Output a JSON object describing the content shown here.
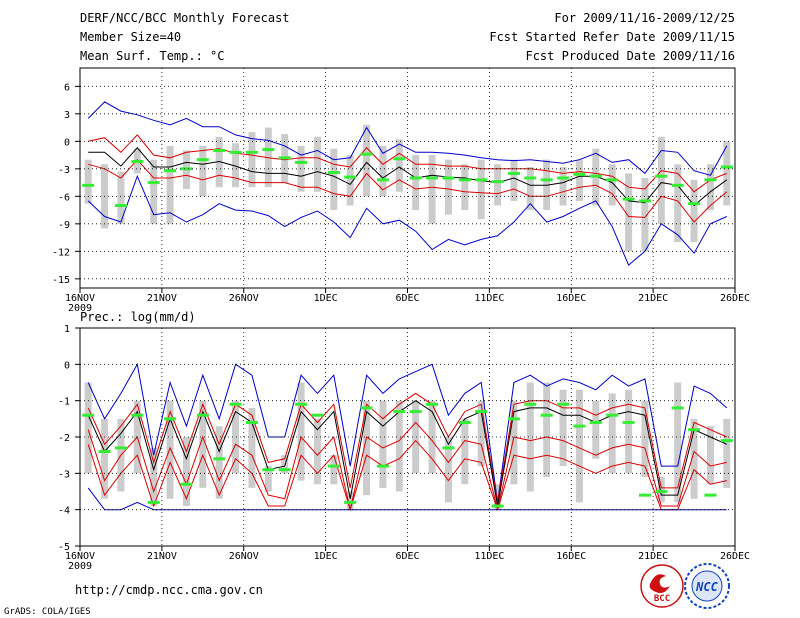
{
  "header": {
    "title": "DERF/NCC/BCC Monthly Forecast",
    "member_size": "Member Size=40",
    "variable": "Mean Surf. Temp.: °C",
    "period": "For 2009/11/16-2009/12/25",
    "fcst_started": "Fcst Started Refer Date 2009/11/15",
    "fcst_produced": "Fcst Produced Date 2009/11/16"
  },
  "footer": {
    "url": "http://cmdp.ncc.cma.gov.cn",
    "grads": "GrADS: COLA/IGES",
    "logo_bcc_text": "BCC",
    "logo_ncc_text": "NCC"
  },
  "colors": {
    "spread_bar": "#cccccc",
    "observed": "#33ee33",
    "mean_line": "#000000",
    "quartile_lines": "#dd0000",
    "extreme_lines": "#0000cc",
    "logo_bcc": "#cc1111",
    "logo_ncc": "#1144bb"
  },
  "chart_data": [
    {
      "id": "temperature",
      "type": "line",
      "title": "",
      "ylim": [
        -16,
        8
      ],
      "yticks": [
        6,
        3,
        0,
        -3,
        -6,
        -9,
        -12,
        -15
      ],
      "xlim": [
        0,
        40
      ],
      "xticks": [
        {
          "day": 0,
          "label": "16NOV",
          "sublabel": "2009"
        },
        {
          "day": 5,
          "label": "21NOV"
        },
        {
          "day": 10,
          "label": "26NOV"
        },
        {
          "day": 15,
          "label": "1DEC"
        },
        {
          "day": 20,
          "label": "6DEC"
        },
        {
          "day": 25,
          "label": "11DEC"
        },
        {
          "day": 30,
          "label": "16DEC"
        },
        {
          "day": 35,
          "label": "21DEC"
        },
        {
          "day": 40,
          "label": "26DEC"
        }
      ],
      "x": [
        0,
        1,
        2,
        3,
        4,
        5,
        6,
        7,
        8,
        9,
        10,
        11,
        12,
        13,
        14,
        15,
        16,
        17,
        18,
        19,
        20,
        21,
        22,
        23,
        24,
        25,
        26,
        27,
        28,
        29,
        30,
        31,
        32,
        33,
        34,
        35,
        36,
        37,
        38,
        39
      ],
      "series": [
        {
          "name": "max",
          "color_key": "extreme_lines",
          "values": [
            2.5,
            4.3,
            3.3,
            2.9,
            2.3,
            1.8,
            2.5,
            1.6,
            1.6,
            0.7,
            0.3,
            0.1,
            -0.5,
            -1.5,
            -1.0,
            -2.0,
            -1.8,
            1.5,
            -1.3,
            -0.3,
            -1.2,
            -1.2,
            -1.3,
            -1.5,
            -1.8,
            -2.0,
            -2.1,
            -2.0,
            -2.2,
            -2.4,
            -2.0,
            -1.3,
            -2.3,
            -2.0,
            -3.5,
            -1.0,
            -1.2,
            -3.2,
            -3.7,
            -0.5
          ]
        },
        {
          "name": "q75",
          "color_key": "quartile_lines",
          "values": [
            0.0,
            0.4,
            -1.2,
            0.7,
            -1.5,
            -1.8,
            -1.2,
            -1.0,
            -0.8,
            -1.3,
            -1.5,
            -1.8,
            -2.0,
            -1.8,
            -1.8,
            -2.5,
            -2.8,
            -0.7,
            -2.5,
            -1.3,
            -2.5,
            -2.5,
            -2.7,
            -2.7,
            -3.0,
            -3.0,
            -3.0,
            -3.0,
            -3.2,
            -3.5,
            -3.3,
            -3.5,
            -3.8,
            -5.0,
            -5.2,
            -3.2,
            -3.5,
            -5.5,
            -4.2,
            -3.5
          ]
        },
        {
          "name": "mean",
          "color_key": "mean_line",
          "values": [
            -1.2,
            -1.2,
            -2.7,
            -0.7,
            -2.8,
            -2.8,
            -2.3,
            -2.5,
            -2.2,
            -2.7,
            -3.3,
            -3.5,
            -3.5,
            -3.8,
            -3.3,
            -3.8,
            -4.7,
            -2.3,
            -4.0,
            -2.8,
            -4.0,
            -3.7,
            -3.9,
            -4.0,
            -4.3,
            -4.5,
            -4.0,
            -4.8,
            -4.8,
            -4.5,
            -3.8,
            -3.8,
            -4.5,
            -6.5,
            -6.7,
            -4.5,
            -4.8,
            -7.0,
            -5.5,
            -4.2
          ]
        },
        {
          "name": "q25",
          "color_key": "quartile_lines",
          "values": [
            -2.5,
            -3.0,
            -4.0,
            -2.0,
            -4.0,
            -4.0,
            -3.7,
            -4.2,
            -3.7,
            -4.0,
            -4.5,
            -4.5,
            -4.5,
            -5.0,
            -5.0,
            -5.7,
            -6.0,
            -3.5,
            -5.3,
            -4.2,
            -5.2,
            -5.0,
            -5.2,
            -5.5,
            -5.6,
            -5.7,
            -5.2,
            -6.0,
            -6.0,
            -5.5,
            -5.0,
            -4.8,
            -5.7,
            -8.2,
            -8.3,
            -6.0,
            -6.5,
            -8.8,
            -7.0,
            -5.5
          ]
        },
        {
          "name": "min",
          "color_key": "extreme_lines",
          "values": [
            -6.5,
            -8.2,
            -8.8,
            -3.8,
            -8.0,
            -7.8,
            -8.8,
            -8.0,
            -6.8,
            -7.5,
            -7.6,
            -8.1,
            -9.3,
            -8.3,
            -7.6,
            -8.8,
            -10.5,
            -7.3,
            -9.0,
            -8.6,
            -9.8,
            -11.8,
            -10.7,
            -11.3,
            -10.7,
            -10.3,
            -8.8,
            -6.8,
            -8.8,
            -8.2,
            -7.3,
            -6.5,
            -9.3,
            -13.5,
            -12.0,
            -9.0,
            -10.2,
            -12.2,
            -9.0,
            -8.2
          ]
        }
      ],
      "observed": [
        -4.8,
        null,
        -7.0,
        -2.2,
        -4.5,
        -3.2,
        -3.0,
        -2.0,
        -1.0,
        -1.2,
        -1.2,
        -0.9,
        -1.8,
        -2.3,
        null,
        -3.4,
        -3.9,
        -1.4,
        -4.2,
        -1.9,
        -4.0,
        -4.0,
        -4.0,
        -4.2,
        -4.2,
        -4.4,
        -3.5,
        -4.0,
        -4.2,
        -4.0,
        -3.6,
        -3.8,
        -4.2,
        -6.3,
        -6.5,
        -3.8,
        -4.8,
        -6.8,
        -4.2,
        -2.8
      ],
      "spread": [
        [
          -2.0,
          -6.8
        ],
        [
          -2.5,
          -9.5
        ],
        [
          -3.3,
          -9.0
        ],
        [
          -0.8,
          -3.5
        ],
        [
          -2.0,
          -9.0
        ],
        [
          -0.5,
          -9.0
        ],
        [
          -1.0,
          -5.2
        ],
        [
          -0.5,
          -6.0
        ],
        [
          0.5,
          -5.0
        ],
        [
          -0.2,
          -5.0
        ],
        [
          1.0,
          -5.0
        ],
        [
          1.5,
          -5.0
        ],
        [
          0.8,
          -4.5
        ],
        [
          -0.5,
          -5.5
        ],
        [
          0.5,
          -5.5
        ],
        [
          -0.8,
          -7.5
        ],
        [
          -1.5,
          -7.0
        ],
        [
          1.8,
          -6.0
        ],
        [
          -0.5,
          -6.0
        ],
        [
          0.2,
          -5.5
        ],
        [
          -1.5,
          -7.5
        ],
        [
          -1.5,
          -9.0
        ],
        [
          -2.0,
          -8.0
        ],
        [
          -2.5,
          -7.5
        ],
        [
          -2.0,
          -8.5
        ],
        [
          -2.5,
          -7.0
        ],
        [
          -2.0,
          -6.5
        ],
        [
          -2.8,
          -7.5
        ],
        [
          -2.0,
          -7.5
        ],
        [
          -2.8,
          -7.0
        ],
        [
          -2.0,
          -6.5
        ],
        [
          -0.8,
          -7.0
        ],
        [
          -2.5,
          -7.0
        ],
        [
          -3.5,
          -12.0
        ],
        [
          -4.0,
          -12.0
        ],
        [
          0.5,
          -9.0
        ],
        [
          -2.5,
          -11.0
        ],
        [
          -4.2,
          -11.0
        ],
        [
          -2.5,
          -7.5
        ],
        [
          0.0,
          -7.0
        ]
      ]
    },
    {
      "id": "precipitation",
      "type": "line",
      "title": "Prec.: log(mm/d)",
      "ylim": [
        -5,
        1
      ],
      "yticks": [
        1,
        0,
        -1,
        -2,
        -3,
        -4,
        -5
      ],
      "xlim": [
        0,
        40
      ],
      "xticks": [
        {
          "day": 0,
          "label": "16NOV",
          "sublabel": "2009"
        },
        {
          "day": 5,
          "label": "21NOV"
        },
        {
          "day": 10,
          "label": "26NOV"
        },
        {
          "day": 15,
          "label": "1DEC"
        },
        {
          "day": 20,
          "label": "6DEC"
        },
        {
          "day": 25,
          "label": "11DEC"
        },
        {
          "day": 30,
          "label": "16DEC"
        },
        {
          "day": 35,
          "label": "21DEC"
        },
        {
          "day": 40,
          "label": "26DEC"
        }
      ],
      "x": [
        0,
        1,
        2,
        3,
        4,
        5,
        6,
        7,
        8,
        9,
        10,
        11,
        12,
        13,
        14,
        15,
        16,
        17,
        18,
        19,
        20,
        21,
        22,
        23,
        24,
        25,
        26,
        27,
        28,
        29,
        30,
        31,
        32,
        33,
        34,
        35,
        36,
        37,
        38,
        39
      ],
      "series": [
        {
          "name": "max",
          "color_key": "extreme_lines",
          "values": [
            -0.5,
            -1.5,
            -0.8,
            0.0,
            -2.5,
            -0.5,
            -1.7,
            -0.3,
            -1.5,
            0.0,
            -0.3,
            -2.0,
            -2.0,
            -0.3,
            -0.8,
            -0.3,
            -2.8,
            -0.3,
            -0.8,
            -0.4,
            -0.2,
            0.0,
            -1.4,
            -0.8,
            -0.5,
            -3.8,
            -0.5,
            -0.3,
            -0.6,
            -0.4,
            -0.5,
            -0.7,
            -0.3,
            -0.6,
            -0.4,
            -2.8,
            -2.8,
            -0.6,
            -0.8,
            -1.2
          ]
        },
        {
          "name": "q75",
          "color_key": "quartile_lines",
          "values": [
            -1.2,
            -2.2,
            -1.7,
            -1.1,
            -2.7,
            -1.3,
            -2.4,
            -1.1,
            -2.2,
            -1.1,
            -1.4,
            -2.7,
            -2.6,
            -1.1,
            -1.6,
            -1.1,
            -3.4,
            -1.1,
            -1.5,
            -1.1,
            -0.8,
            -1.1,
            -2.0,
            -1.3,
            -1.1,
            -3.8,
            -1.1,
            -1.0,
            -1.0,
            -1.2,
            -1.2,
            -1.4,
            -1.2,
            -1.1,
            -1.2,
            -3.4,
            -3.4,
            -1.6,
            -1.8,
            -2.0
          ]
        },
        {
          "name": "mean",
          "color_key": "mean_line",
          "values": [
            -1.4,
            -2.4,
            -1.9,
            -1.3,
            -2.9,
            -1.5,
            -2.6,
            -1.3,
            -2.4,
            -1.3,
            -1.6,
            -2.9,
            -2.8,
            -1.3,
            -1.8,
            -1.3,
            -3.7,
            -1.3,
            -1.7,
            -1.3,
            -1.0,
            -1.3,
            -2.2,
            -1.5,
            -1.3,
            -3.9,
            -1.3,
            -1.2,
            -1.2,
            -1.4,
            -1.4,
            -1.6,
            -1.4,
            -1.3,
            -1.4,
            -3.6,
            -3.6,
            -1.8,
            -2.0,
            -2.2
          ]
        },
        {
          "name": "q25",
          "color_key": "quartile_lines",
          "values": [
            -1.8,
            -3.2,
            -2.5,
            -2.0,
            -3.5,
            -2.3,
            -3.3,
            -2.0,
            -3.2,
            -2.2,
            -2.5,
            -3.6,
            -3.7,
            -2.0,
            -2.5,
            -2.0,
            -4.0,
            -2.0,
            -2.3,
            -2.1,
            -1.6,
            -2.1,
            -2.7,
            -2.1,
            -2.2,
            -4.0,
            -2.0,
            -2.1,
            -2.0,
            -2.1,
            -2.3,
            -2.5,
            -2.3,
            -2.2,
            -2.3,
            -3.9,
            -3.9,
            -2.4,
            -2.8,
            -2.7
          ]
        },
        {
          "name": "q10",
          "color_key": "quartile_lines",
          "values": [
            -2.2,
            -3.6,
            -3.0,
            -2.5,
            -3.9,
            -2.7,
            -3.7,
            -2.5,
            -3.6,
            -2.6,
            -3.0,
            -3.9,
            -3.9,
            -2.5,
            -3.0,
            -2.5,
            -4.0,
            -2.5,
            -2.8,
            -2.6,
            -2.1,
            -2.6,
            -3.2,
            -2.6,
            -2.7,
            -4.0,
            -2.5,
            -2.6,
            -2.5,
            -2.6,
            -2.8,
            -3.0,
            -2.8,
            -2.7,
            -2.8,
            -4.0,
            -4.0,
            -2.9,
            -3.3,
            -3.2
          ]
        },
        {
          "name": "min",
          "color_key": "extreme_lines",
          "values": [
            -3.4,
            -4.0,
            -4.0,
            -3.8,
            -4.0,
            -4.0,
            -4.0,
            -4.0,
            -4.0,
            -4.0,
            -4.0,
            -4.0,
            -4.0,
            -4.0,
            -4.0,
            -4.0,
            -4.0,
            -4.0,
            -4.0,
            -4.0,
            -4.0,
            -4.0,
            -4.0,
            -4.0,
            -4.0,
            -4.0,
            -4.0,
            -4.0,
            -4.0,
            -4.0,
            -4.0,
            -4.0,
            -4.0,
            -4.0,
            -4.0,
            -4.0,
            -4.0,
            -4.0,
            -4.0,
            -4.0
          ]
        }
      ],
      "observed": [
        -1.4,
        -2.4,
        -2.3,
        -1.4,
        -3.8,
        -1.5,
        -3.3,
        -1.4,
        -2.6,
        -1.1,
        -1.6,
        -2.9,
        -2.9,
        -1.1,
        -1.4,
        -2.8,
        -3.8,
        -1.2,
        -2.8,
        -1.3,
        -1.3,
        -1.1,
        -2.3,
        -1.6,
        -1.3,
        -3.9,
        -1.5,
        -1.1,
        -1.4,
        -1.1,
        -1.7,
        -1.6,
        -1.4,
        -1.6,
        -3.6,
        -3.5,
        -1.2,
        -1.8,
        -3.6,
        -2.1
      ],
      "spread": [
        [
          -0.5,
          -3.0
        ],
        [
          -1.5,
          -3.7
        ],
        [
          -1.5,
          -3.5
        ],
        [
          -1.0,
          -3.0
        ],
        [
          -2.3,
          -3.9
        ],
        [
          -1.0,
          -3.7
        ],
        [
          -2.0,
          -3.9
        ],
        [
          -1.0,
          -3.4
        ],
        [
          -1.7,
          -3.7
        ],
        [
          -1.0,
          -3.0
        ],
        [
          -1.2,
          -3.4
        ],
        [
          -2.8,
          -3.5
        ],
        [
          -2.5,
          -3.0
        ],
        [
          -0.5,
          -3.2
        ],
        [
          -1.5,
          -3.3
        ],
        [
          -2.5,
          -3.3
        ],
        [
          -3.5,
          -4.0
        ],
        [
          -1.0,
          -3.6
        ],
        [
          -1.0,
          -3.4
        ],
        [
          -1.0,
          -3.5
        ],
        [
          -1.0,
          -3.0
        ],
        [
          -1.0,
          -3.0
        ],
        [
          -2.0,
          -3.8
        ],
        [
          -1.5,
          -3.3
        ],
        [
          -1.0,
          -2.8
        ],
        [
          -3.3,
          -4.0
        ],
        [
          -1.0,
          -3.3
        ],
        [
          -0.5,
          -3.5
        ],
        [
          -0.5,
          -3.1
        ],
        [
          -0.7,
          -2.8
        ],
        [
          -0.7,
          -3.8
        ],
        [
          -1.0,
          -2.6
        ],
        [
          -0.8,
          -3.0
        ],
        [
          -0.7,
          -3.0
        ],
        [
          -1.0,
          -3.1
        ],
        [
          -3.1,
          -3.8
        ],
        [
          -0.5,
          -3.8
        ],
        [
          -1.5,
          -3.7
        ],
        [
          -1.7,
          -3.3
        ],
        [
          -1.5,
          -3.4
        ]
      ]
    }
  ]
}
